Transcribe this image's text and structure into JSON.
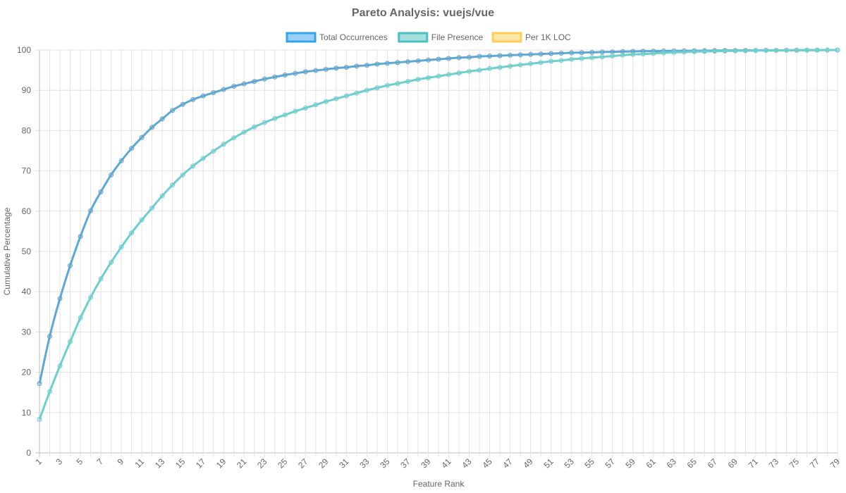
{
  "chart_data": {
    "type": "line",
    "title": "Pareto Analysis: vuejs/vue",
    "xlabel": "Feature Rank",
    "ylabel": "Cumulative Percentage",
    "ylim": [
      0,
      100
    ],
    "yticks": [
      0,
      10,
      20,
      30,
      40,
      50,
      60,
      70,
      80,
      90,
      100
    ],
    "x_range": [
      1,
      79
    ],
    "x_tick_step": 2,
    "grid": true,
    "legend_position": "top",
    "series": [
      {
        "name": "Total Occurrences",
        "color": "#5aa9d6",
        "legend_color": "#36a2eb",
        "values": [
          17.2,
          28.9,
          38.3,
          46.5,
          53.7,
          60.1,
          64.8,
          69.0,
          72.5,
          75.6,
          78.3,
          80.8,
          82.9,
          85.0,
          86.5,
          87.7,
          88.6,
          89.4,
          90.2,
          91.0,
          91.6,
          92.2,
          92.8,
          93.3,
          93.8,
          94.2,
          94.6,
          94.9,
          95.2,
          95.5,
          95.7,
          96.0,
          96.2,
          96.5,
          96.7,
          96.9,
          97.1,
          97.3,
          97.5,
          97.7,
          97.9,
          98.1,
          98.2,
          98.4,
          98.5,
          98.6,
          98.7,
          98.8,
          98.9,
          99.0,
          99.1,
          99.2,
          99.3,
          99.35,
          99.4,
          99.5,
          99.55,
          99.6,
          99.65,
          99.7,
          99.72,
          99.75,
          99.78,
          99.8,
          99.82,
          99.84,
          99.86,
          99.88,
          99.9,
          99.91,
          99.92,
          99.93,
          99.94,
          99.95,
          99.96,
          99.97,
          99.98,
          99.99,
          100
        ]
      },
      {
        "name": "File Presence",
        "color": "#6ccfcf",
        "legend_color": "#4bc0c0",
        "values": [
          8.3,
          15.2,
          21.6,
          27.6,
          33.5,
          38.6,
          43.2,
          47.3,
          51.1,
          54.6,
          57.8,
          60.8,
          63.8,
          66.5,
          69.0,
          71.2,
          73.1,
          74.9,
          76.6,
          78.2,
          79.6,
          80.9,
          82.0,
          83.0,
          83.9,
          84.8,
          85.6,
          86.4,
          87.2,
          87.9,
          88.6,
          89.3,
          90.0,
          90.6,
          91.2,
          91.7,
          92.2,
          92.7,
          93.1,
          93.5,
          93.9,
          94.3,
          94.7,
          95.0,
          95.4,
          95.7,
          96.0,
          96.3,
          96.6,
          96.9,
          97.2,
          97.4,
          97.7,
          97.9,
          98.1,
          98.3,
          98.5,
          98.7,
          98.9,
          99.0,
          99.15,
          99.3,
          99.4,
          99.5,
          99.6,
          99.65,
          99.7,
          99.75,
          99.8,
          99.83,
          99.86,
          99.88,
          99.9,
          99.92,
          99.94,
          99.96,
          99.97,
          99.99,
          100
        ]
      },
      {
        "name": "Per 1K LOC",
        "color": "#ffcd56",
        "legend_color": "#ffcd56",
        "values": []
      }
    ]
  }
}
